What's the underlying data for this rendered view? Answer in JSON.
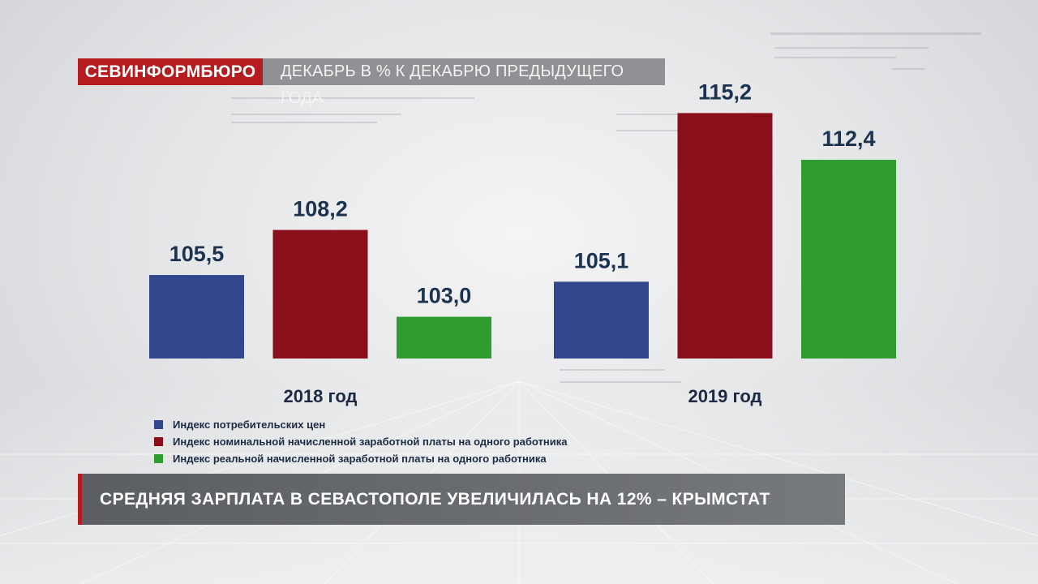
{
  "brand": {
    "name": "СЕВИНФОРМБЮРО"
  },
  "header": {
    "subtitle": "ДЕКАБРЬ  В % К ДЕКАБРЮ ПРЕДЫДУЩЕГО ГОДА"
  },
  "colors": {
    "brand_red": "#b51c1f",
    "cpi": "#32468c",
    "nominal_wage": "#8b0f1a",
    "real_wage": "#2e9c2e",
    "value_text": "#1c3350",
    "headline_bg": "#5f6267"
  },
  "chart_data": {
    "type": "bar",
    "categories": [
      "2018 год",
      "2019 год"
    ],
    "series": [
      {
        "name": "Индекс потребительских цен",
        "values": [
          105.5,
          105.1
        ],
        "labels": [
          "105,5",
          "105,1"
        ],
        "color": "#32468c"
      },
      {
        "name": "Индекс номинальной начисленной заработной платы на одного работника",
        "values": [
          108.2,
          115.2
        ],
        "labels": [
          "108,2",
          "115,2"
        ],
        "color": "#8b0f1a"
      },
      {
        "name": "Индекс реальной начисленной заработной платы на одного работника",
        "values": [
          103.0,
          112.4
        ],
        "labels": [
          "103,0",
          "112,4"
        ],
        "color": "#2e9c2e"
      }
    ],
    "title": "ДЕКАБРЬ  В % К ДЕКАБРЮ ПРЕДЫДУЩЕГО ГОДА",
    "ylim": [
      100.5,
      121
    ],
    "grid": false,
    "legend": "bottom-left"
  },
  "headline": {
    "text": "СРЕДНЯЯ ЗАРПЛАТА В СЕВАСТОПОЛЕ УВЕЛИЧИЛАСЬ НА 12% – КРЫМСТАТ"
  }
}
